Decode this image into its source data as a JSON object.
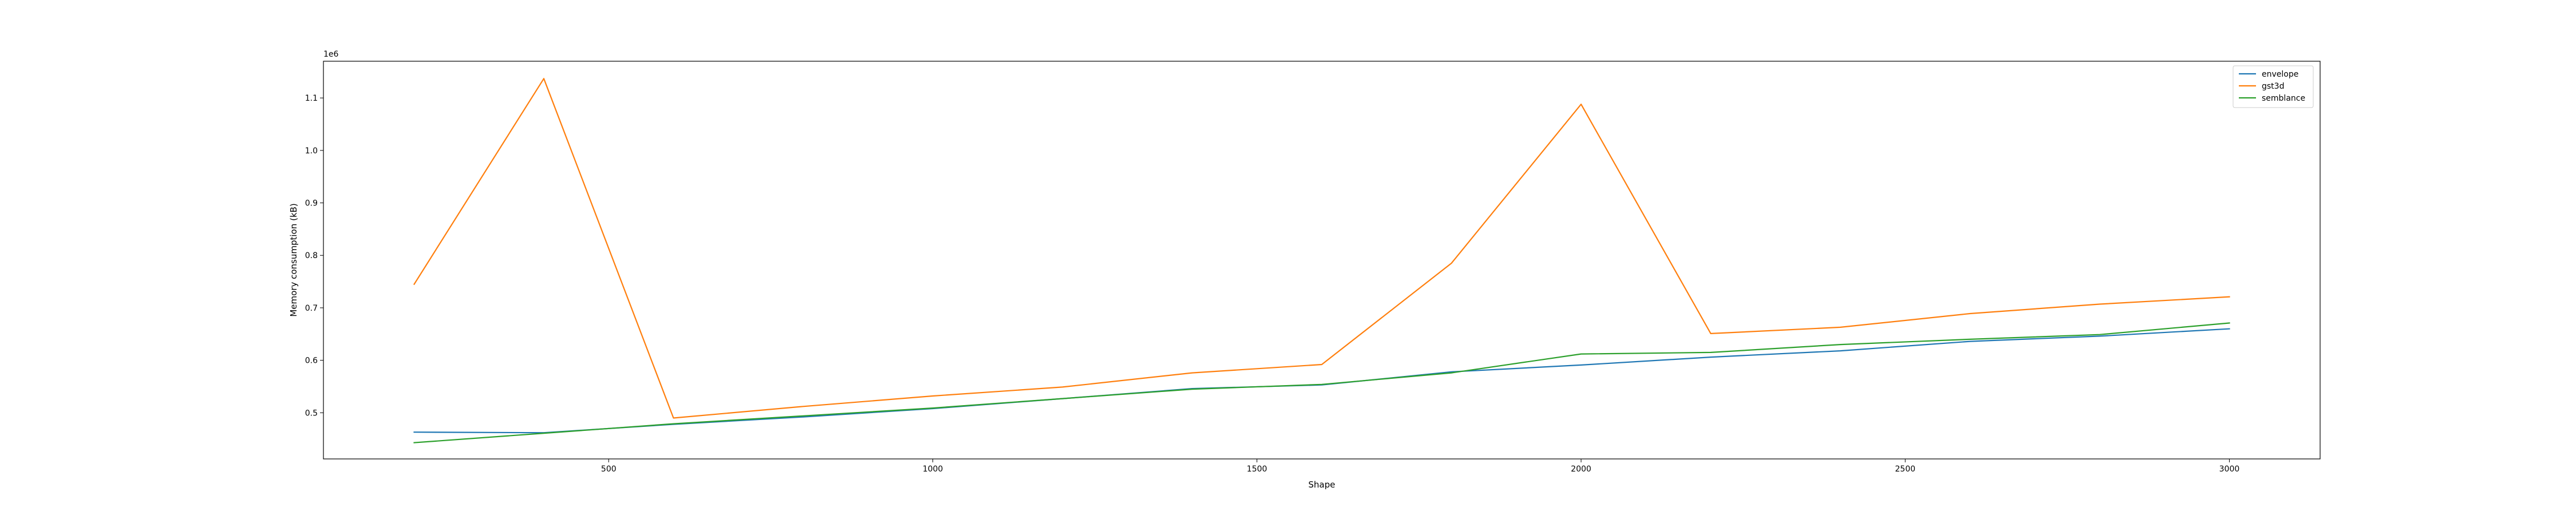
{
  "chart_data": {
    "type": "line",
    "title": "",
    "xlabel": "Shape",
    "ylabel": "Memory consumption (kB)",
    "y_offset_label": "1e6",
    "xlim": [
      60,
      3140
    ],
    "ylim": [
      0.412,
      1.17
    ],
    "xticks": [
      500,
      1000,
      1500,
      2000,
      2500,
      3000
    ],
    "yticks": [
      0.5,
      0.6,
      0.7,
      0.8,
      0.9,
      1.0,
      1.1
    ],
    "grid": false,
    "legend_position": "top-right",
    "x": [
      200,
      400,
      600,
      800,
      1000,
      1200,
      1400,
      1600,
      1800,
      2000,
      2200,
      2400,
      2600,
      2800,
      3000
    ],
    "series": [
      {
        "name": "envelope",
        "color": "#1f77b4",
        "values": [
          0.463,
          0.462,
          0.478,
          0.492,
          0.508,
          0.527,
          0.546,
          0.553,
          0.578,
          0.591,
          0.606,
          0.618,
          0.636,
          0.646,
          0.66
        ]
      },
      {
        "name": "gst3d",
        "color": "#ff7f0e",
        "values": [
          0.745,
          1.137,
          0.49,
          0.512,
          0.532,
          0.549,
          0.576,
          0.592,
          0.785,
          1.088,
          0.651,
          0.663,
          0.689,
          0.707,
          0.721
        ]
      },
      {
        "name": "semblance",
        "color": "#2ca02c",
        "values": [
          0.443,
          0.461,
          0.479,
          0.494,
          0.509,
          0.527,
          0.545,
          0.554,
          0.576,
          0.612,
          0.615,
          0.63,
          0.64,
          0.649,
          0.671
        ]
      }
    ]
  }
}
